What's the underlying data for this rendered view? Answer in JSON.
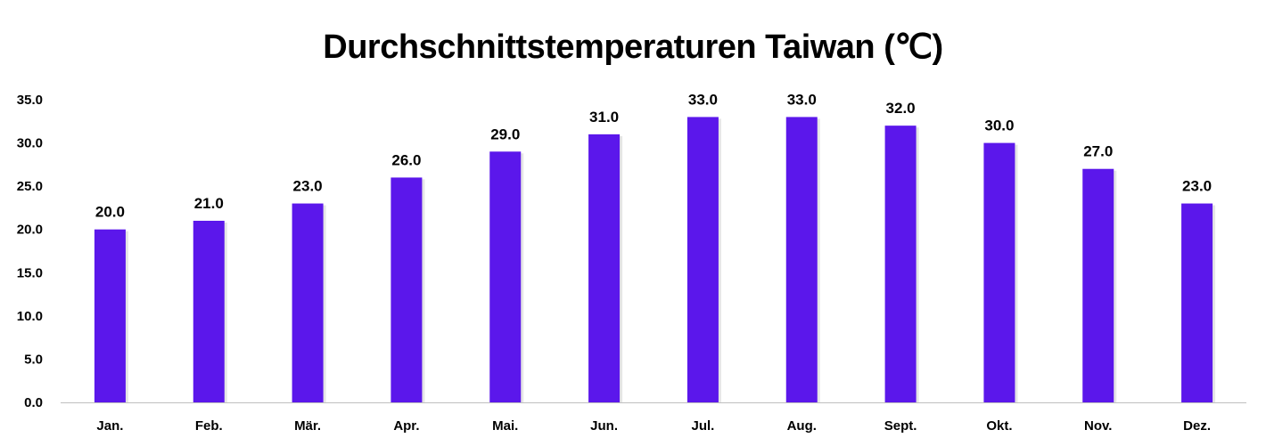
{
  "chart_data": {
    "type": "bar",
    "title": "Durchschnittstemperaturen Taiwan (℃)",
    "xlabel": "",
    "ylabel": "",
    "categories": [
      "Jan.",
      "Feb.",
      "Mär.",
      "Apr.",
      "Mai.",
      "Jun.",
      "Jul.",
      "Aug.",
      "Sept.",
      "Okt.",
      "Nov.",
      "Dez."
    ],
    "values": [
      20.0,
      21.0,
      23.0,
      26.0,
      29.0,
      31.0,
      33.0,
      33.0,
      32.0,
      30.0,
      27.0,
      23.0
    ],
    "ylim": [
      0,
      35
    ],
    "yticks": [
      "0.0",
      "5.0",
      "10.0",
      "15.0",
      "20.0",
      "25.0",
      "30.0",
      "35.0"
    ],
    "data_labels": [
      "20.0",
      "21.0",
      "23.0",
      "26.0",
      "29.0",
      "31.0",
      "33.0",
      "33.0",
      "32.0",
      "30.0",
      "27.0",
      "23.0"
    ],
    "grid": false,
    "legend": "none",
    "bar_color": "#5b17eb"
  }
}
